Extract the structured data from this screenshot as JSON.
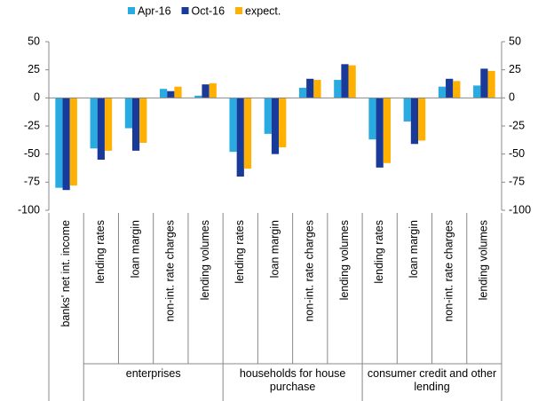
{
  "chart_data": {
    "type": "bar",
    "groups": [
      {
        "categories": [
          "banks' net int. income"
        ]
      },
      {
        "name": "enterprises",
        "categories": [
          "lending rates",
          "loan margin",
          "non-int. rate charges",
          "lending volumes"
        ]
      },
      {
        "name": "households for house purchase",
        "categories": [
          "lending rates",
          "loan margin",
          "non-int. rate charges",
          "lending volumes"
        ]
      },
      {
        "name": "consumer credit and other lending",
        "categories": [
          "lending rates",
          "loan margin",
          "non-int. rate charges",
          "lending volumes"
        ]
      }
    ],
    "series": [
      {
        "name": "Apr-16",
        "color": "#29abe2",
        "values": [
          -80,
          -45,
          -27,
          8,
          2,
          -48,
          -32,
          9,
          16,
          -37,
          -21,
          10,
          11
        ]
      },
      {
        "name": "Oct-16",
        "color": "#1a3a9a",
        "values": [
          -82,
          -55,
          -47,
          6,
          12,
          -70,
          -50,
          17,
          30,
          -62,
          -41,
          17,
          26
        ]
      },
      {
        "name": "expect.",
        "color": "#ffb000",
        "values": [
          -78,
          -47,
          -40,
          10,
          13,
          -63,
          -44,
          16,
          29,
          -58,
          -38,
          15,
          24
        ]
      }
    ],
    "ylim": [
      -100,
      50
    ],
    "yticks": [
      -100,
      -75,
      -50,
      -25,
      0,
      25,
      50
    ],
    "y2lim": [
      -100,
      50
    ],
    "y2ticks": [
      -100,
      -75,
      -50,
      -25,
      0,
      25,
      50
    ],
    "legend": "top"
  }
}
